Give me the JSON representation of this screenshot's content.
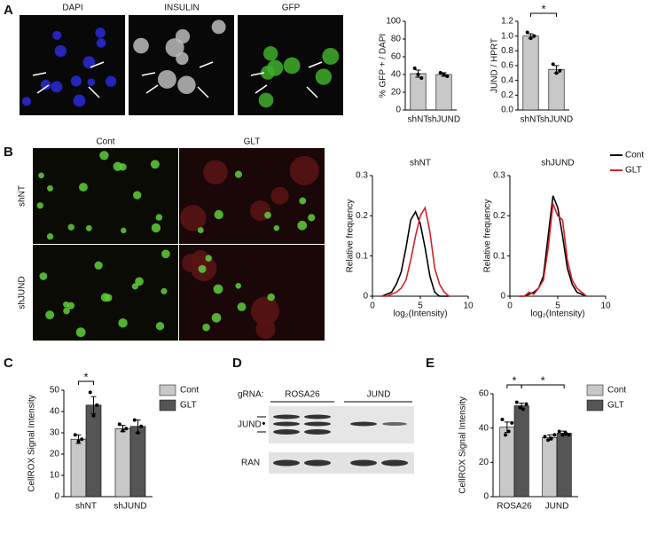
{
  "panel_labels": [
    "A",
    "B",
    "C",
    "D",
    "E"
  ],
  "micrographs": {
    "a_channels": [
      "DAPI",
      "INSULIN",
      "GFP"
    ],
    "b_columns": [
      "Cont",
      "GLT"
    ],
    "b_rows": [
      "shNT",
      "shJUND"
    ]
  },
  "blot": {
    "grna_label": "gRNA:",
    "lanes": [
      "ROSA26",
      "JUND"
    ],
    "rows": [
      "JUND",
      "RAN"
    ]
  },
  "chart_data": [
    {
      "type": "bar",
      "y_label": "% GFP + / DAPI",
      "categories": [
        "shNT",
        "shJUND"
      ],
      "series": [
        {
          "color": "#c8c8c8",
          "values": [
            41,
            40
          ],
          "errors": [
            4,
            2
          ],
          "points": [
            [
              47,
              40,
              36
            ],
            [
              42,
              40,
              38
            ]
          ]
        }
      ],
      "ylim": [
        0,
        100
      ],
      "yticks": [
        0,
        20,
        40,
        60,
        80,
        100
      ]
    },
    {
      "type": "bar",
      "y_label": "JUND / HPRT",
      "categories": [
        "shNT",
        "shJUND"
      ],
      "series": [
        {
          "color": "#c8c8c8",
          "values": [
            1.0,
            0.55
          ],
          "errors": [
            0.03,
            0.05
          ],
          "points": [
            [
              1.05,
              0.97,
              1.0
            ],
            [
              0.62,
              0.5,
              0.53
            ]
          ]
        }
      ],
      "ylim": [
        0,
        1.2
      ],
      "yticks": [
        {
          "value": 0,
          "label": "0.0"
        },
        0.2,
        0.4,
        0.6,
        0.8,
        {
          "value": 1,
          "label": "1.0"
        },
        1.2
      ],
      "annotations": [
        "*"
      ]
    },
    {
      "type": "line",
      "title": "shNT",
      "x_label": "log₂(Intensity)",
      "y_label": "Relative frequency",
      "x": [
        1,
        1.5,
        2,
        2.5,
        3,
        3.5,
        4,
        4.5,
        5,
        5.5,
        6,
        6.5,
        7,
        7.5,
        8
      ],
      "series": [
        {
          "color": "#000000",
          "values": [
            0,
            0.005,
            0.01,
            0.03,
            0.06,
            0.12,
            0.19,
            0.21,
            0.18,
            0.12,
            0.05,
            0.01,
            0,
            0,
            0
          ]
        },
        {
          "color": "#d62027",
          "values": [
            0,
            0,
            0.005,
            0.01,
            0.02,
            0.04,
            0.09,
            0.15,
            0.2,
            0.22,
            0.16,
            0.07,
            0.03,
            0.01,
            0
          ]
        }
      ],
      "xlim": [
        0,
        10
      ],
      "xticks": [
        0,
        5,
        10
      ],
      "ylim": [
        0,
        0.3
      ],
      "yticks": [
        0,
        0.1,
        0.2,
        0.3
      ]
    },
    {
      "type": "line",
      "title": "shJUND",
      "x_label": "log₂(Intensity)",
      "y_label": "Relative frequency",
      "x": [
        1,
        1.5,
        2,
        2.5,
        3,
        3.5,
        4,
        4.5,
        5,
        5.5,
        6,
        6.5,
        7,
        7.5,
        8
      ],
      "series": [
        {
          "name": "Cont",
          "color": "#000000",
          "values": [
            0,
            0,
            0.005,
            0.01,
            0.02,
            0.05,
            0.15,
            0.25,
            0.22,
            0.15,
            0.07,
            0.03,
            0.01,
            0.005,
            0
          ]
        },
        {
          "name": "GLT",
          "color": "#d62027",
          "values": [
            0,
            0,
            0.01,
            0.005,
            0.02,
            0.04,
            0.12,
            0.23,
            0.2,
            0.19,
            0.09,
            0.04,
            0.02,
            0.01,
            0
          ]
        }
      ],
      "xlim": [
        0,
        10
      ],
      "xticks": [
        0,
        5,
        10
      ],
      "ylim": [
        0,
        0.3
      ],
      "yticks": [
        0,
        0.1,
        0.2,
        0.3
      ],
      "legend": true
    },
    {
      "type": "bar",
      "y_label": "CellROX Signal Intensity",
      "categories": [
        "shNT",
        "shJUND"
      ],
      "series": [
        {
          "name": "Cont",
          "color": "#c8c8c8",
          "values": [
            27,
            32
          ],
          "errors": [
            2,
            1.5
          ],
          "points": [
            [
              29,
              26,
              27
            ],
            [
              34,
              31,
              32
            ]
          ]
        },
        {
          "name": "GLT",
          "color": "#555555",
          "values": [
            43,
            33
          ],
          "errors": [
            4,
            3
          ],
          "points": [
            [
              49,
              38,
              43
            ],
            [
              36,
              30,
              33
            ]
          ]
        }
      ],
      "ylim": [
        0,
        50
      ],
      "yticks": [
        0,
        10,
        20,
        30,
        40,
        50
      ],
      "legend": true,
      "annotations": [
        "*"
      ]
    },
    {
      "type": "bar",
      "y_label": "CellROX Signal Intensity",
      "categories": [
        "ROSA26",
        "JUND"
      ],
      "series": [
        {
          "name": "Cont",
          "color": "#c8c8c8",
          "values": [
            40.5,
            34.5
          ],
          "errors": [
            3,
            1.5
          ],
          "points": [
            [
              45,
              36,
              38,
              43
            ],
            [
              35,
              33,
              34,
              36
            ]
          ]
        },
        {
          "name": "GLT",
          "color": "#555555",
          "values": [
            53,
            37
          ],
          "errors": [
            1.5,
            1.2
          ],
          "points": [
            [
              55,
              52,
              51,
              54
            ],
            [
              38,
              36,
              37,
              36
            ]
          ]
        }
      ],
      "ylim": [
        0,
        60
      ],
      "yticks": [
        0,
        20,
        40,
        60
      ],
      "legend": true,
      "annotations": [
        "*",
        "*"
      ]
    }
  ]
}
